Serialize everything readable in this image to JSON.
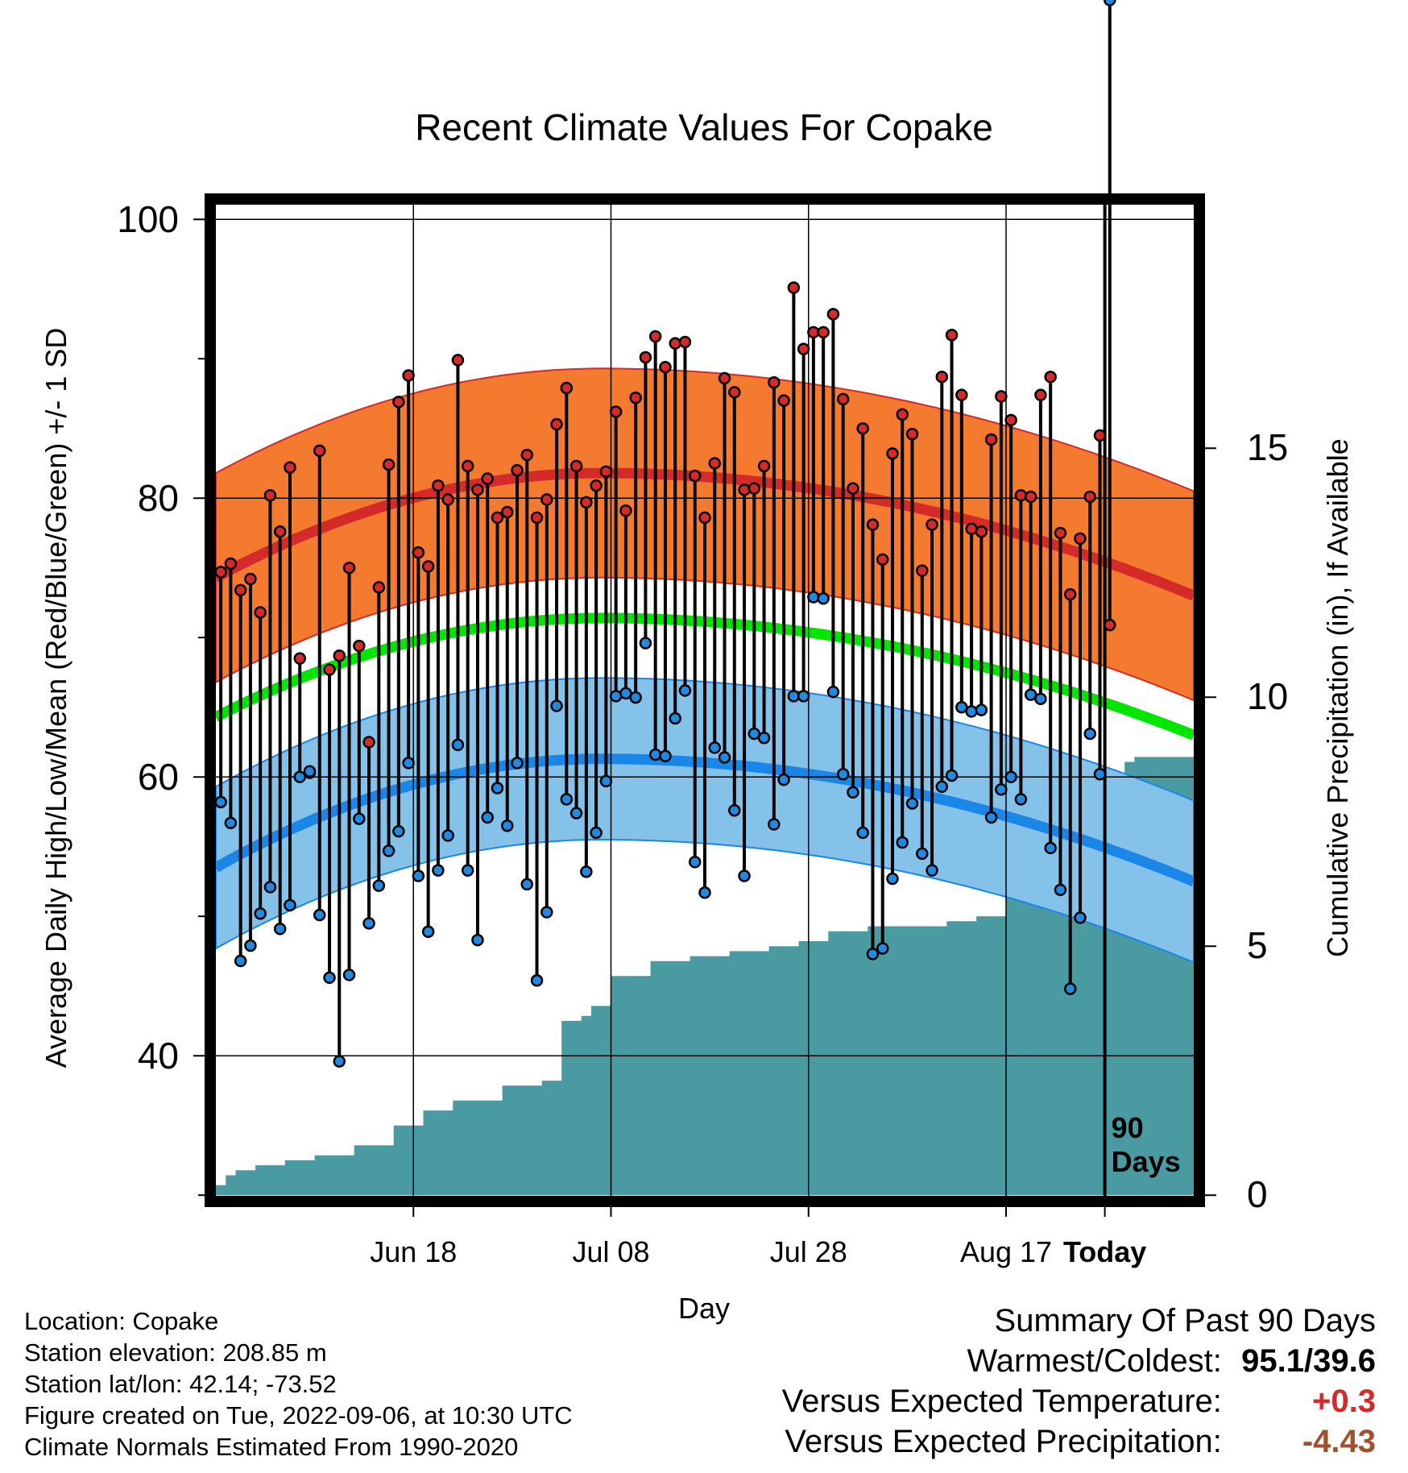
{
  "chart_data": {
    "type": "line",
    "title": "Recent Climate Values For Copake",
    "xlabel": "Day",
    "ylabel": "Average Daily High/Low/Mean (Red/Blue/Green) +/- 1 SD",
    "y2label": "Cumulative Precipitation (in), If Available",
    "ylim": [
      30,
      101
    ],
    "y2lim": [
      0,
      20
    ],
    "yticks": [
      "100",
      "80",
      "60",
      "40"
    ],
    "y2ticks": [
      "15",
      "10",
      "5",
      "0"
    ],
    "xticks": [
      "Jun 18",
      "Jul 08",
      "Jul 28",
      "Aug 17",
      "Today"
    ],
    "x_day_range": [
      -90,
      9
    ],
    "today_label": "90\nDays",
    "grid": true,
    "colors": {
      "high_band": "#f47a30",
      "high_line": "#d42a2a",
      "mean_line": "#00e600",
      "low_band": "#84c2ea",
      "low_line": "#1a86e8",
      "precip": "#4a9aa2",
      "high_point": "#d42a2a",
      "low_point": "#1f8ae0"
    },
    "normal_high": {
      "anchors_day": [
        -90,
        -51,
        9
      ],
      "values": [
        74.3,
        81.8,
        73.0
      ],
      "sd": 7.5
    },
    "normal_mean": {
      "anchors_day": [
        -90,
        -51,
        9
      ],
      "values": [
        64.3,
        71.4,
        63.0
      ]
    },
    "normal_low": {
      "anchors_day": [
        -90,
        -51,
        9
      ],
      "values": [
        53.5,
        61.3,
        52.5
      ],
      "sd": 5.8
    },
    "daily_high": [
      74.7,
      75.3,
      73.4,
      74.2,
      71.8,
      80.2,
      77.6,
      82.2,
      68.5,
      60.3,
      83.4,
      67.7,
      68.7,
      75.0,
      69.4,
      62.5,
      73.6,
      82.4,
      86.9,
      88.8,
      76.1,
      75.1,
      80.9,
      79.9,
      89.9,
      82.3,
      80.6,
      81.4,
      78.6,
      79.0,
      82.0,
      83.1,
      78.6,
      79.9,
      85.3,
      87.9,
      82.3,
      79.7,
      80.9,
      81.9,
      86.2,
      79.1,
      87.2,
      90.1,
      91.6,
      89.4,
      91.1,
      91.2,
      81.6,
      78.6,
      82.5,
      88.6,
      87.6,
      80.6,
      80.7,
      82.3,
      88.3,
      87.0,
      95.1,
      90.7,
      91.9,
      91.9,
      93.2,
      87.1,
      80.7,
      85.0,
      78.1,
      75.6,
      83.2,
      86.0,
      84.6,
      74.8,
      78.1,
      88.7,
      91.7,
      87.4,
      77.8,
      77.6,
      84.2,
      87.3,
      85.6,
      80.2,
      80.1,
      87.4,
      88.7,
      77.5,
      73.1,
      77.1,
      80.1,
      84.5,
      70.9
    ],
    "daily_low": [
      58.2,
      56.7,
      46.8,
      47.9,
      50.2,
      52.1,
      49.1,
      50.8,
      60.0,
      60.4,
      50.1,
      45.6,
      39.6,
      45.8,
      57.0,
      49.5,
      52.2,
      54.7,
      56.1,
      61.0,
      52.9,
      48.9,
      53.3,
      55.8,
      62.3,
      53.3,
      48.3,
      57.1,
      59.2,
      56.5,
      61.0,
      52.3,
      45.4,
      50.3,
      65.1,
      58.4,
      57.4,
      53.2,
      56.0,
      59.7,
      65.8,
      66.0,
      65.7,
      69.6,
      61.6,
      61.5,
      64.2,
      66.2,
      53.9,
      51.7,
      62.1,
      61.4,
      57.6,
      52.9,
      63.1,
      62.8,
      56.6,
      59.8,
      65.8,
      65.8,
      72.9,
      72.8,
      66.1,
      60.2,
      58.9,
      56.0,
      47.3,
      47.7,
      52.7,
      55.3,
      58.1,
      54.5,
      53.3,
      59.3,
      60.1,
      65.0,
      64.7,
      64.8,
      57.1,
      59.1,
      60.0,
      58.4,
      65.9,
      65.6,
      54.9,
      51.9,
      44.8,
      49.9,
      63.1,
      60.2
    ],
    "precip_cumulative": {
      "days": [
        -90,
        -89,
        -88,
        -86,
        -83,
        -80,
        -76,
        -72,
        -69,
        -66,
        -61,
        -57,
        -55,
        -53,
        -52,
        -50,
        -46,
        -42,
        -38,
        -34,
        -31,
        -28,
        -24,
        -19,
        -16,
        -13,
        -10,
        -7,
        -6,
        -4,
        -2,
        0,
        1,
        2,
        3,
        9
      ],
      "values": [
        0.2,
        0.4,
        0.5,
        0.6,
        0.7,
        0.8,
        1.0,
        1.4,
        1.7,
        1.9,
        2.2,
        2.3,
        3.5,
        3.6,
        3.8,
        4.4,
        4.7,
        4.8,
        4.9,
        5.0,
        5.1,
        5.3,
        5.4,
        5.4,
        5.5,
        5.6,
        6.1,
        6.4,
        6.4,
        6.8,
        7.1,
        7.5,
        8.3,
        8.7,
        8.8,
        8.9
      ]
    }
  },
  "info": {
    "location": "Location: Copake",
    "elevation": "Station elevation: 208.85 m",
    "latlon": "Station lat/lon: 42.14; -73.52",
    "created": "Figure created on Tue, 2022-09-06, at 10:30 UTC",
    "normals": "Climate Normals Estimated From 1990-2020"
  },
  "summary": {
    "title": "Summary Of Past 90 Days",
    "warmest_label": "Warmest/Coldest:",
    "warmest_value": "95.1/39.6",
    "temp_label": "Versus Expected Temperature:",
    "temp_value": "+0.3",
    "temp_color": "#d42a2a",
    "precip_label": "Versus Expected Precipitation:",
    "precip_value": "-4.43",
    "precip_color": "#a0522d"
  }
}
